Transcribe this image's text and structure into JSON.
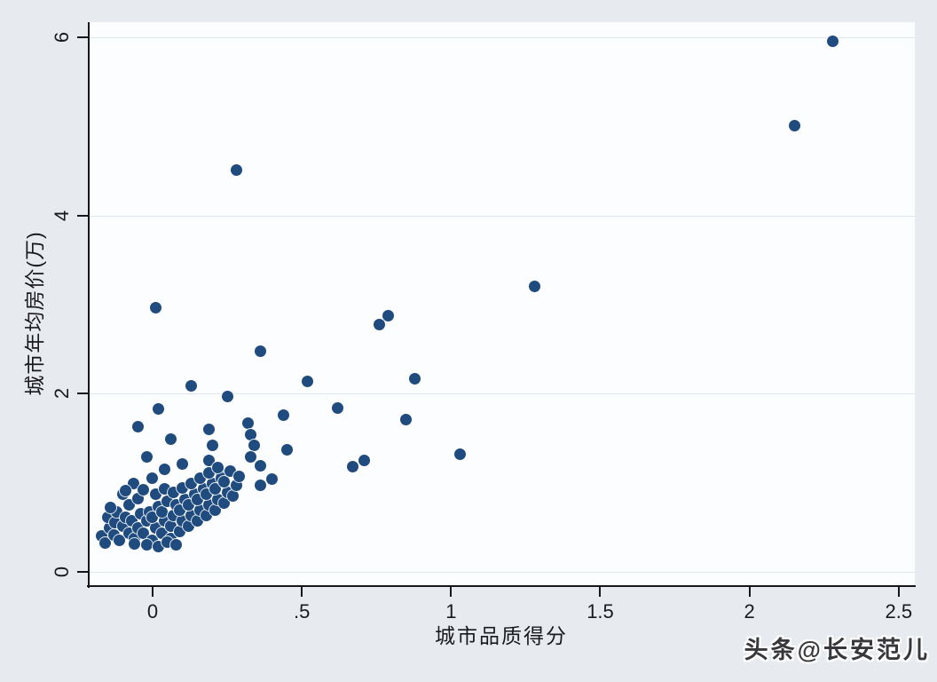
{
  "figure": {
    "background_color": "#e7ebf0",
    "plot_background_color": "#fcfdff",
    "grid_color": "#dde6ee",
    "axis_color": "#16161b",
    "marker_color": "#1f4b7e"
  },
  "watermark": {
    "text": "头条@长安范儿"
  },
  "chart_data": {
    "type": "scatter",
    "title": "",
    "xlabel": "城市品质得分",
    "ylabel": "城市年均房价(万)",
    "xlim": [
      -0.214,
      2.554
    ],
    "ylim": [
      -0.16,
      6.17
    ],
    "x_ticks": [
      0,
      0.5,
      1,
      1.5,
      2,
      2.5
    ],
    "x_tick_labels": [
      "0",
      ".5",
      "1",
      "1.5",
      "2",
      "2.5"
    ],
    "y_ticks": [
      0,
      2,
      4,
      6
    ],
    "y_tick_labels": [
      "0",
      "2",
      "4",
      "6"
    ],
    "grid": "horizontal",
    "legend": "none",
    "series_name": "城市",
    "points": [
      [
        2.28,
        5.96
      ],
      [
        2.15,
        5.01
      ],
      [
        0.28,
        4.51
      ],
      [
        1.28,
        3.2
      ],
      [
        0.01,
        2.97
      ],
      [
        0.79,
        2.88
      ],
      [
        0.76,
        2.78
      ],
      [
        0.36,
        2.48
      ],
      [
        0.88,
        2.17
      ],
      [
        0.52,
        2.14
      ],
      [
        0.13,
        2.09
      ],
      [
        0.25,
        1.97
      ],
      [
        0.62,
        1.84
      ],
      [
        0.02,
        1.83
      ],
      [
        0.44,
        1.76
      ],
      [
        0.85,
        1.71
      ],
      [
        0.32,
        1.67
      ],
      [
        -0.05,
        1.63
      ],
      [
        0.19,
        1.6
      ],
      [
        0.33,
        1.54
      ],
      [
        0.06,
        1.49
      ],
      [
        0.34,
        1.42
      ],
      [
        0.45,
        1.37
      ],
      [
        0.2,
        1.42
      ],
      [
        0.33,
        1.29
      ],
      [
        1.03,
        1.32
      ],
      [
        0.71,
        1.25
      ],
      [
        0.67,
        1.18
      ],
      [
        0.36,
        1.19
      ],
      [
        0.4,
        1.04
      ],
      [
        0.36,
        0.97
      ],
      [
        0.23,
        1.1
      ],
      [
        0.19,
        1.25
      ],
      [
        -0.02,
        1.29
      ],
      [
        0.0,
        1.05
      ],
      [
        -0.065,
        0.99
      ],
      [
        -0.1,
        0.87
      ],
      [
        0.04,
        1.15
      ],
      [
        0.1,
        1.21
      ],
      [
        -0.17,
        0.4
      ],
      [
        -0.16,
        0.32
      ],
      [
        -0.145,
        0.49
      ],
      [
        -0.15,
        0.61
      ],
      [
        -0.125,
        0.55
      ],
      [
        -0.13,
        0.41
      ],
      [
        -0.11,
        0.35
      ],
      [
        -0.1,
        0.51
      ],
      [
        -0.12,
        0.67
      ],
      [
        -0.09,
        0.61
      ],
      [
        -0.08,
        0.43
      ],
      [
        -0.07,
        0.57
      ],
      [
        -0.06,
        0.37
      ],
      [
        -0.05,
        0.49
      ],
      [
        -0.08,
        0.75
      ],
      [
        -0.04,
        0.65
      ],
      [
        -0.03,
        0.43
      ],
      [
        -0.02,
        0.57
      ],
      [
        -0.05,
        0.82
      ],
      [
        -0.01,
        0.67
      ],
      [
        0.0,
        0.35
      ],
      [
        0.01,
        0.49
      ],
      [
        0.0,
        0.61
      ],
      [
        0.02,
        0.73
      ],
      [
        0.01,
        0.87
      ],
      [
        0.03,
        0.43
      ],
      [
        0.04,
        0.57
      ],
      [
        0.03,
        0.67
      ],
      [
        0.05,
        0.79
      ],
      [
        0.04,
        0.93
      ],
      [
        0.06,
        0.37
      ],
      [
        0.06,
        0.51
      ],
      [
        0.07,
        0.63
      ],
      [
        0.08,
        0.75
      ],
      [
        0.07,
        0.89
      ],
      [
        0.09,
        0.45
      ],
      [
        0.1,
        0.57
      ],
      [
        0.09,
        0.69
      ],
      [
        0.11,
        0.81
      ],
      [
        0.1,
        0.94
      ],
      [
        0.12,
        0.51
      ],
      [
        0.13,
        0.63
      ],
      [
        0.12,
        0.75
      ],
      [
        0.14,
        0.87
      ],
      [
        0.13,
        0.99
      ],
      [
        0.15,
        0.57
      ],
      [
        0.16,
        0.69
      ],
      [
        0.15,
        0.81
      ],
      [
        0.17,
        0.93
      ],
      [
        0.16,
        1.05
      ],
      [
        0.18,
        0.63
      ],
      [
        0.19,
        0.75
      ],
      [
        0.18,
        0.87
      ],
      [
        0.2,
        0.99
      ],
      [
        0.19,
        1.11
      ],
      [
        0.21,
        0.69
      ],
      [
        0.22,
        0.81
      ],
      [
        0.21,
        0.93
      ],
      [
        0.23,
        1.05
      ],
      [
        0.22,
        1.17
      ],
      [
        0.24,
        0.77
      ],
      [
        0.25,
        0.89
      ],
      [
        0.24,
        1.01
      ],
      [
        0.26,
        1.13
      ],
      [
        0.27,
        0.85
      ],
      [
        0.28,
        0.97
      ],
      [
        0.29,
        1.07
      ],
      [
        -0.02,
        0.3
      ],
      [
        0.02,
        0.28
      ],
      [
        0.05,
        0.33
      ],
      [
        -0.06,
        0.31
      ],
      [
        0.08,
        0.3
      ],
      [
        -0.09,
        0.91
      ],
      [
        -0.03,
        0.92
      ],
      [
        -0.14,
        0.72
      ]
    ]
  }
}
